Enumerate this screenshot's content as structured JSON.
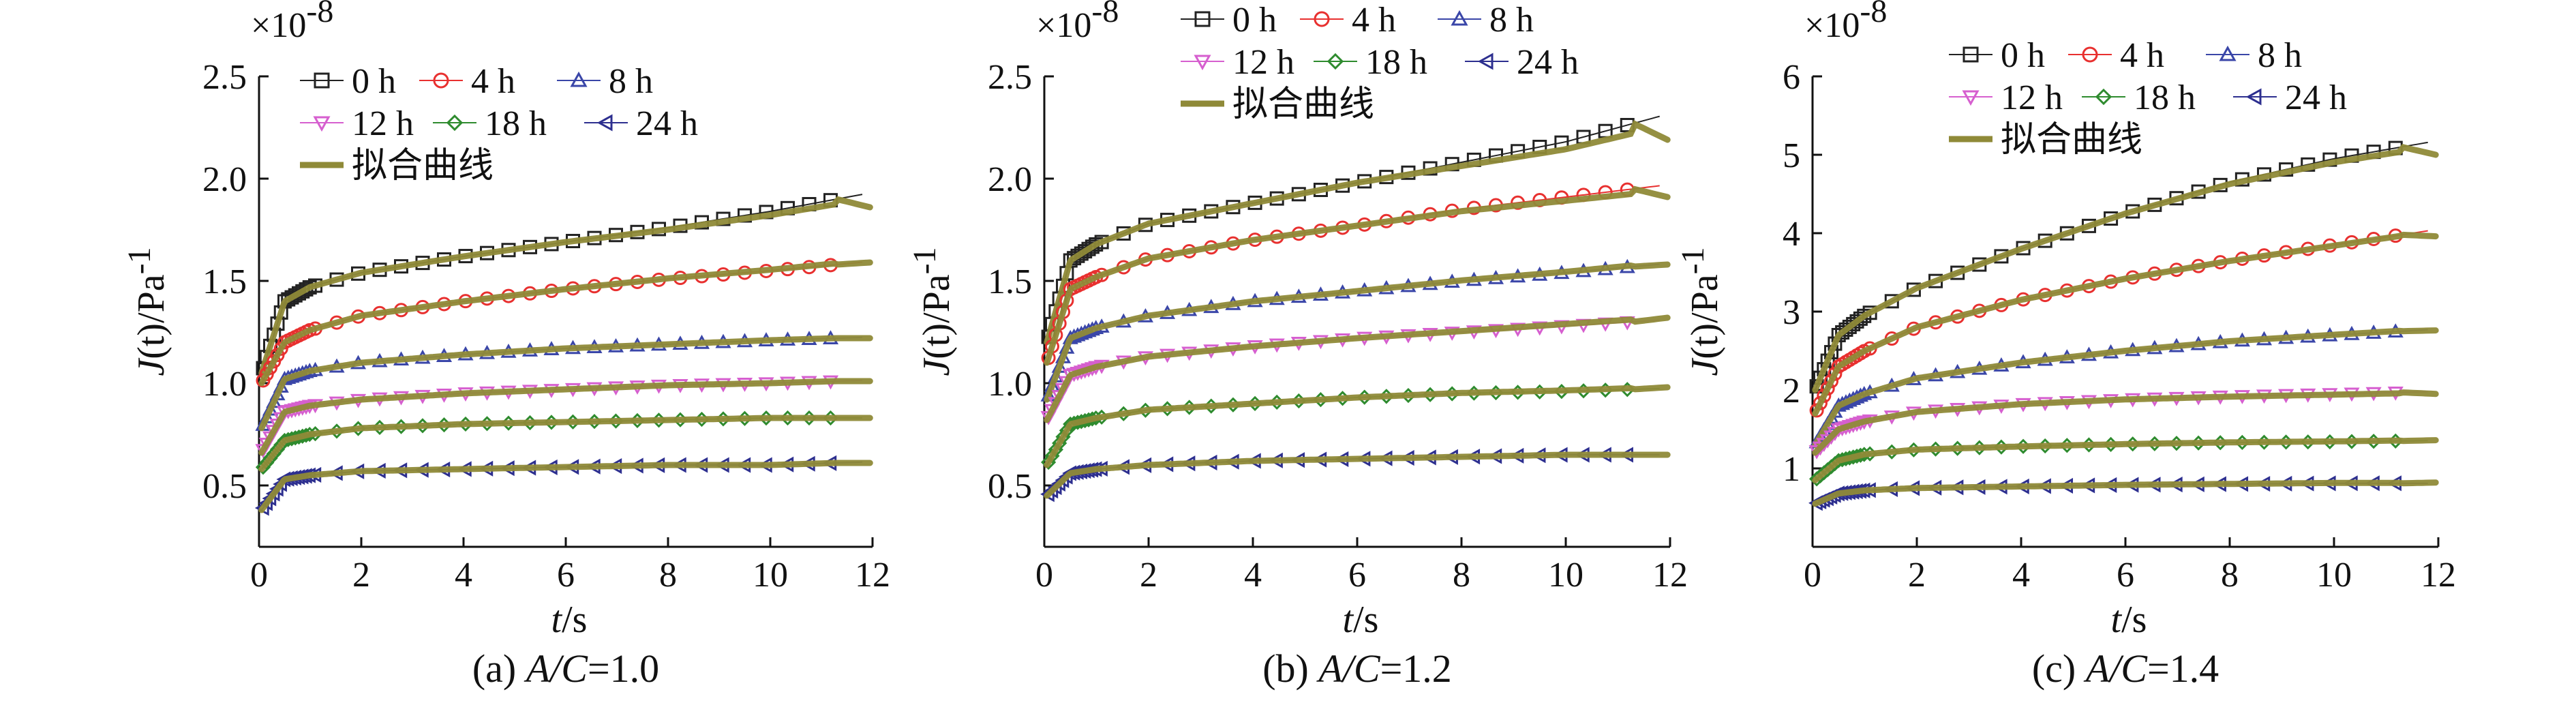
{
  "chart_data": [
    {
      "type": "line",
      "caption_prefix": "(a) ",
      "caption_var": "A/C",
      "caption_value": "=1.0",
      "multiplier_base": "×10",
      "multiplier_exp": "-8",
      "xlabel_var": "t",
      "xlabel_unit": "/s",
      "ylabel_var": "J",
      "ylabel_arg": "(t)",
      "ylabel_unit": "/Pa",
      "ylabel_exp": "-1",
      "xlim": [
        0,
        12
      ],
      "ylim": [
        0.2,
        2.5
      ],
      "xticks": [
        0,
        2,
        4,
        6,
        8,
        10,
        12
      ],
      "xtick_labels": [
        "0",
        "2",
        "4",
        "6",
        "8",
        "10",
        "12"
      ],
      "yticks": [
        0.5,
        1.0,
        1.5,
        2.0,
        2.5
      ],
      "ytick_labels": [
        "0.5",
        "1.0",
        "1.5",
        "2.0",
        "2.5"
      ],
      "fit_label": "拟合曲线",
      "series": [
        {
          "name": "0 h",
          "label": "0 h",
          "values_at_x": {
            "x": [
              0.05,
              0.5,
              1,
              2,
              4,
              6,
              8,
              10,
              11.3
            ],
            "y": [
              1.05,
              1.4,
              1.47,
              1.54,
              1.62,
              1.69,
              1.76,
              1.84,
              1.9
            ]
          },
          "fit_end": 1.86
        },
        {
          "name": "4 h",
          "label": "4 h",
          "values_at_x": {
            "x": [
              0.05,
              0.5,
              1,
              2,
              4,
              6,
              8,
              10,
              11.3
            ],
            "y": [
              1.0,
              1.2,
              1.26,
              1.33,
              1.4,
              1.46,
              1.51,
              1.55,
              1.58
            ]
          },
          "fit_end": 1.59
        },
        {
          "name": "8 h",
          "label": "8 h",
          "values_at_x": {
            "x": [
              0.05,
              0.5,
              1,
              2,
              4,
              6,
              8,
              10,
              11.3
            ],
            "y": [
              0.78,
              1.02,
              1.06,
              1.1,
              1.14,
              1.17,
              1.19,
              1.21,
              1.22
            ]
          },
          "fit_end": 1.22
        },
        {
          "name": "12 h",
          "label": "12 h",
          "values_at_x": {
            "x": [
              0.05,
              0.5,
              1,
              2,
              4,
              6,
              8,
              10,
              11.3
            ],
            "y": [
              0.66,
              0.86,
              0.89,
              0.92,
              0.95,
              0.97,
              0.99,
              1.0,
              1.01
            ]
          },
          "fit_end": 1.01
        },
        {
          "name": "18 h",
          "label": "18 h",
          "values_at_x": {
            "x": [
              0.05,
              0.5,
              1,
              2,
              4,
              6,
              8,
              10,
              11.3
            ],
            "y": [
              0.58,
              0.72,
              0.75,
              0.78,
              0.8,
              0.81,
              0.82,
              0.83,
              0.83
            ]
          },
          "fit_end": 0.83
        },
        {
          "name": "24 h",
          "label": "24 h",
          "values_at_x": {
            "x": [
              0.05,
              0.5,
              1,
              2,
              4,
              6,
              8,
              10,
              11.3
            ],
            "y": [
              0.38,
              0.53,
              0.55,
              0.57,
              0.58,
              0.59,
              0.6,
              0.6,
              0.61
            ]
          },
          "fit_end": 0.61
        }
      ]
    },
    {
      "type": "line",
      "caption_prefix": "(b) ",
      "caption_var": "A/C",
      "caption_value": "=1.2",
      "multiplier_base": "×10",
      "multiplier_exp": "-8",
      "xlabel_var": "t",
      "xlabel_unit": "/s",
      "ylabel_var": "J",
      "ylabel_arg": "(t)",
      "ylabel_unit": "/Pa",
      "ylabel_exp": "-1",
      "xlim": [
        0,
        12
      ],
      "ylim": [
        0.2,
        2.5
      ],
      "xticks": [
        0,
        2,
        4,
        6,
        8,
        10,
        12
      ],
      "xtick_labels": [
        "0",
        "2",
        "4",
        "6",
        "8",
        "10",
        "12"
      ],
      "yticks": [
        0.5,
        1.0,
        1.5,
        2.0,
        2.5
      ],
      "ytick_labels": [
        "0.5",
        "1.0",
        "1.5",
        "2.0",
        "2.5"
      ],
      "fit_label": "拟合曲线",
      "series": [
        {
          "name": "0 h",
          "label": "0 h",
          "values_at_x": {
            "x": [
              0.05,
              0.5,
              1,
              2,
              4,
              6,
              8,
              10,
              11.3
            ],
            "y": [
              1.2,
              1.6,
              1.68,
              1.78,
              1.88,
              1.98,
              2.08,
              2.18,
              2.27
            ]
          },
          "fit_end": 2.19
        },
        {
          "name": "4 h",
          "label": "4 h",
          "values_at_x": {
            "x": [
              0.05,
              0.5,
              1,
              2,
              4,
              6,
              8,
              10,
              11.3
            ],
            "y": [
              1.1,
              1.46,
              1.52,
              1.61,
              1.7,
              1.77,
              1.85,
              1.91,
              1.95
            ]
          },
          "fit_end": 1.91
        },
        {
          "name": "8 h",
          "label": "8 h",
          "values_at_x": {
            "x": [
              0.05,
              0.5,
              1,
              2,
              4,
              6,
              8,
              10,
              11.3
            ],
            "y": [
              0.92,
              1.22,
              1.27,
              1.33,
              1.4,
              1.45,
              1.5,
              1.54,
              1.57
            ]
          },
          "fit_end": 1.58
        },
        {
          "name": "12 h",
          "label": "12 h",
          "values_at_x": {
            "x": [
              0.05,
              0.5,
              1,
              2,
              4,
              6,
              8,
              10,
              11.3
            ],
            "y": [
              0.82,
              1.04,
              1.08,
              1.13,
              1.18,
              1.22,
              1.25,
              1.28,
              1.3
            ]
          },
          "fit_end": 1.32
        },
        {
          "name": "18 h",
          "label": "18 h",
          "values_at_x": {
            "x": [
              0.05,
              0.5,
              1,
              2,
              4,
              6,
              8,
              10,
              11.3
            ],
            "y": [
              0.6,
              0.8,
              0.83,
              0.87,
              0.9,
              0.93,
              0.95,
              0.96,
              0.97
            ]
          },
          "fit_end": 0.98
        },
        {
          "name": "24 h",
          "label": "24 h",
          "values_at_x": {
            "x": [
              0.05,
              0.5,
              1,
              2,
              4,
              6,
              8,
              10,
              11.3
            ],
            "y": [
              0.45,
              0.56,
              0.58,
              0.6,
              0.62,
              0.63,
              0.64,
              0.65,
              0.65
            ]
          },
          "fit_end": 0.65
        }
      ]
    },
    {
      "type": "line",
      "caption_prefix": "(c) ",
      "caption_var": "A/C",
      "caption_value": "=1.4",
      "multiplier_base": "×10",
      "multiplier_exp": "-8",
      "xlabel_var": "t",
      "xlabel_unit": "/s",
      "ylabel_var": "J",
      "ylabel_arg": "(t)",
      "ylabel_unit": "/Pa",
      "ylabel_exp": "-1",
      "xlim": [
        0,
        12
      ],
      "ylim": [
        0,
        6
      ],
      "xticks": [
        0,
        2,
        4,
        6,
        8,
        10,
        12
      ],
      "xtick_labels": [
        "0",
        "2",
        "4",
        "6",
        "8",
        "10",
        "12"
      ],
      "yticks": [
        1,
        2,
        3,
        4,
        5,
        6
      ],
      "ytick_labels": [
        "1",
        "2",
        "3",
        "4",
        "5",
        "6"
      ],
      "fit_label": "拟合曲线",
      "series": [
        {
          "name": "0 h",
          "label": "0 h",
          "values_at_x": {
            "x": [
              0.05,
              0.5,
              1,
              2,
              4,
              6,
              8,
              10,
              11.3
            ],
            "y": [
              2.0,
              2.7,
              2.95,
              3.3,
              3.8,
              4.25,
              4.65,
              4.95,
              5.1
            ]
          },
          "fit_end": 5.0
        },
        {
          "name": "4 h",
          "label": "4 h",
          "values_at_x": {
            "x": [
              0.05,
              0.5,
              1,
              2,
              4,
              6,
              8,
              10,
              11.3
            ],
            "y": [
              1.7,
              2.3,
              2.5,
              2.8,
              3.15,
              3.42,
              3.65,
              3.85,
              3.98
            ]
          },
          "fit_end": 3.96
        },
        {
          "name": "8 h",
          "label": "8 h",
          "values_at_x": {
            "x": [
              0.05,
              0.5,
              1,
              2,
              4,
              6,
              8,
              10,
              11.3
            ],
            "y": [
              1.3,
              1.8,
              1.95,
              2.15,
              2.35,
              2.5,
              2.62,
              2.7,
              2.75
            ]
          },
          "fit_end": 2.76
        },
        {
          "name": "12 h",
          "label": "12 h",
          "values_at_x": {
            "x": [
              0.05,
              0.5,
              1,
              2,
              4,
              6,
              8,
              10,
              11.3
            ],
            "y": [
              1.2,
              1.5,
              1.6,
              1.72,
              1.82,
              1.88,
              1.92,
              1.95,
              1.97
            ]
          },
          "fit_end": 1.95
        },
        {
          "name": "18 h",
          "label": "18 h",
          "values_at_x": {
            "x": [
              0.05,
              0.5,
              1,
              2,
              4,
              6,
              8,
              10,
              11.3
            ],
            "y": [
              0.85,
              1.1,
              1.18,
              1.24,
              1.28,
              1.31,
              1.33,
              1.34,
              1.35
            ]
          },
          "fit_end": 1.36
        },
        {
          "name": "24 h",
          "label": "24 h",
          "values_at_x": {
            "x": [
              0.05,
              0.5,
              1,
              2,
              4,
              6,
              8,
              10,
              11.3
            ],
            "y": [
              0.55,
              0.68,
              0.72,
              0.75,
              0.77,
              0.79,
              0.8,
              0.81,
              0.81
            ]
          },
          "fit_end": 0.82
        }
      ]
    }
  ],
  "style": {
    "series_colors": [
      "#222222",
      "#e8302f",
      "#3a46a8",
      "#d65fcf",
      "#2e8b2e",
      "#2d2f8f"
    ],
    "series_markers": [
      "square",
      "circle",
      "triangle-up",
      "triangle-down",
      "diamond",
      "triangle-left"
    ],
    "fit_color": "#8f8a38",
    "axis_color": "#111111"
  }
}
